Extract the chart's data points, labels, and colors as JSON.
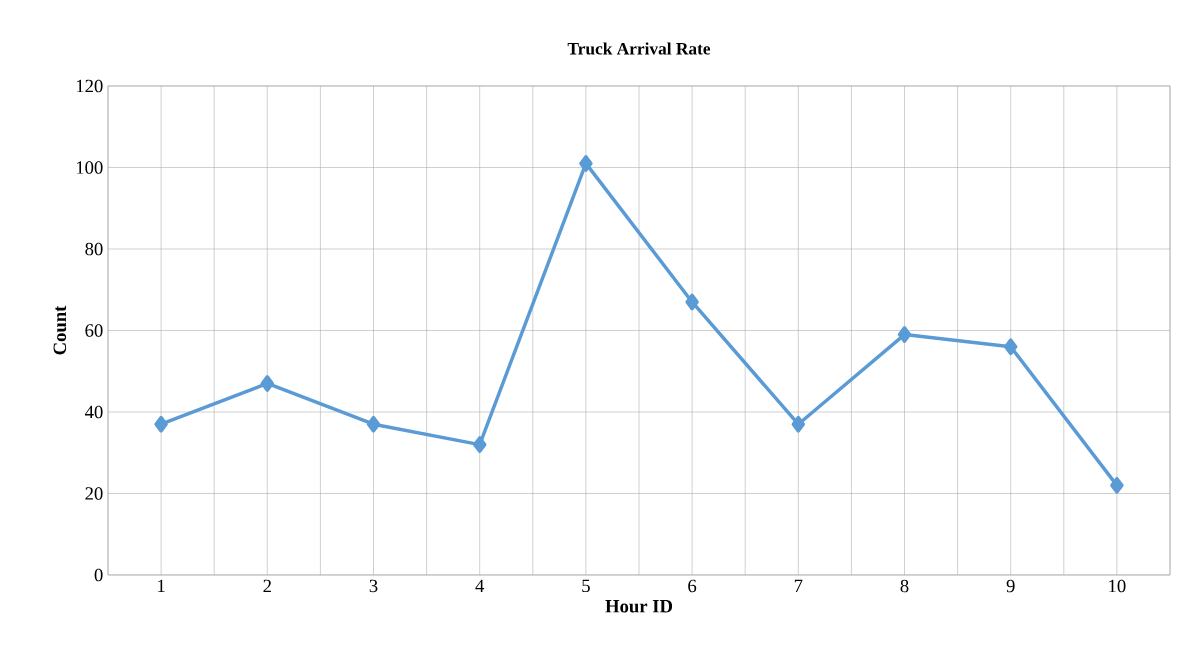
{
  "chart_data": {
    "type": "line",
    "title": "Truck Arrival Rate",
    "xlabel": "Hour ID",
    "ylabel": "Count",
    "categories": [
      "1",
      "2",
      "3",
      "4",
      "5",
      "6",
      "7",
      "8",
      "9",
      "10"
    ],
    "values": [
      37,
      47,
      37,
      32,
      101,
      67,
      37,
      59,
      56,
      22
    ],
    "color": "#5b9bd5",
    "marker": "diamond",
    "line_style": "solid",
    "ylim": [
      0,
      120
    ],
    "yticks": [
      0,
      20,
      40,
      60,
      80,
      100,
      120
    ],
    "grid": true
  }
}
